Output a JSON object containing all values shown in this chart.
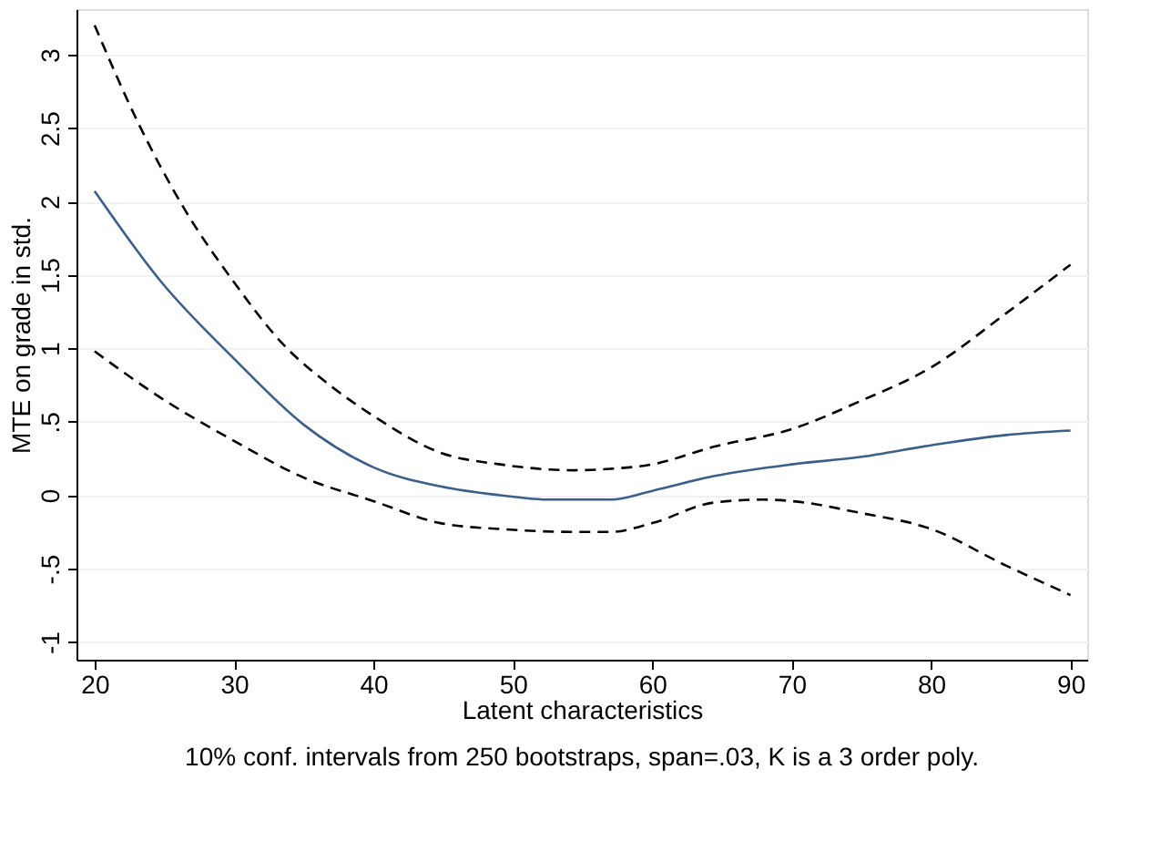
{
  "chart_data": {
    "type": "line",
    "xlabel": "Latent characteristics",
    "ylabel": "MTE on grade in std.",
    "annotations": [
      "10% conf. intervals from 250 bootstraps, span=.03, K is a 3 order poly."
    ],
    "xlim": [
      18.7,
      91.2
    ],
    "ylim": [
      -1.12,
      3.31
    ],
    "xticks": [
      20,
      30,
      40,
      50,
      60,
      70,
      80,
      90
    ],
    "yticks": [
      -1,
      {
        "value": -0.5,
        "label": "-.5"
      },
      0,
      {
        "value": 0.5,
        "label": ".5"
      },
      1,
      1.5,
      2,
      2.5,
      3
    ],
    "grid": "y",
    "series": [
      {
        "color": "#3b5f8a",
        "line_style": "solid",
        "x": [
          20,
          24.8,
          30,
          35,
          40,
          44.8,
          49.1,
          52.7,
          57,
          60,
          64.4,
          70,
          74.9,
          80,
          85.4,
          90
        ],
        "values": [
          2.07,
          1.45,
          0.93,
          0.48,
          0.19,
          0.06,
          0.0,
          -0.03,
          -0.03,
          0.03,
          0.13,
          0.21,
          0.26,
          0.34,
          0.41,
          0.44
        ]
      },
      {
        "color": "#000000",
        "line_style": "dashed",
        "x": [
          20,
          23,
          26.5,
          30,
          33.5,
          37,
          40,
          44.8,
          49.1,
          54.4,
          57,
          60,
          64.4,
          70,
          74.9,
          80,
          85.4,
          90
        ],
        "values": [
          3.2,
          2.56,
          1.94,
          1.45,
          1.03,
          0.74,
          0.54,
          0.29,
          0.21,
          0.17,
          0.18,
          0.21,
          0.33,
          0.45,
          0.64,
          0.87,
          1.24,
          1.57
        ]
      },
      {
        "color": "#000000",
        "line_style": "dashed",
        "x": [
          20,
          24.8,
          30,
          35,
          40,
          44.8,
          49.1,
          54.4,
          57,
          60,
          64.4,
          67.9,
          70,
          74.9,
          80,
          85.4,
          90
        ],
        "values": [
          0.98,
          0.66,
          0.37,
          0.12,
          -0.04,
          -0.19,
          -0.23,
          -0.25,
          -0.25,
          -0.19,
          -0.05,
          -0.03,
          -0.04,
          -0.12,
          -0.23,
          -0.48,
          -0.68
        ]
      }
    ]
  }
}
